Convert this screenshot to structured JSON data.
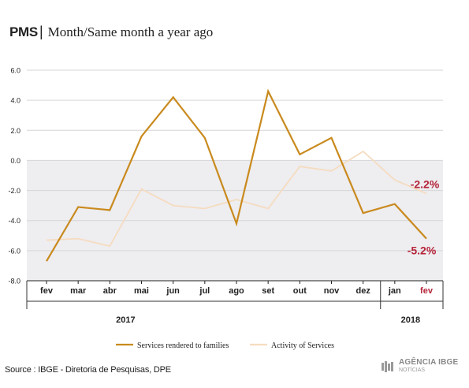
{
  "header": {
    "brand": "PMS",
    "separator": "|",
    "title": "Month/Same month a year ago"
  },
  "source": "Source : IBGE - Diretoria de Pesquisas, DPE",
  "logo": {
    "main": "AGÊNCIA IBGE",
    "sub": "NOTÍCIAS"
  },
  "colors": {
    "series1": "#c98a1d",
    "series2": "#f5dcc0",
    "shade": "#eeedf0",
    "highlight": "#b5243a"
  },
  "chart_data": {
    "type": "line",
    "categories": [
      "fev",
      "mar",
      "abr",
      "mai",
      "jun",
      "jul",
      "ago",
      "set",
      "out",
      "nov",
      "dez",
      "jan",
      "fev"
    ],
    "highlight_category_index": 12,
    "year_labels": [
      {
        "label": "2017",
        "category_index": 2.5
      },
      {
        "label": "2018",
        "category_index": 11.5
      }
    ],
    "yticks": [
      "6.0",
      "4.0",
      "2.0",
      "0.0",
      "-2.0",
      "-4.0",
      "-6.0",
      "-8.0"
    ],
    "ylim": [
      -8,
      6
    ],
    "shaded_below_zero": true,
    "series": [
      {
        "name": "Services rendered to families",
        "color": "#c98a1d",
        "values": [
          -6.7,
          -3.1,
          -3.3,
          1.6,
          4.2,
          1.5,
          -4.2,
          4.6,
          0.4,
          1.5,
          -3.5,
          -2.9,
          -5.2
        ]
      },
      {
        "name": "Activity of Services",
        "color": "#f5dcc0",
        "values": [
          -5.3,
          -5.2,
          -5.7,
          -1.9,
          -3.0,
          -3.2,
          -2.6,
          -3.2,
          -0.4,
          -0.7,
          0.6,
          -1.3,
          -2.2
        ]
      }
    ],
    "annotations": [
      {
        "text": "-2.2%",
        "series_index": 1,
        "category_index": 12
      },
      {
        "text": "-5.2%",
        "series_index": 0,
        "category_index": 12
      }
    ]
  }
}
